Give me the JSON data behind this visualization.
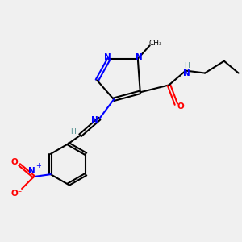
{
  "bg_color": "#f0f0f0",
  "atom_colors": {
    "C": "#000000",
    "N": "#0000ff",
    "O": "#ff0000",
    "H": "#4a8a8a"
  },
  "figsize": [
    3.0,
    3.0
  ],
  "dpi": 100
}
